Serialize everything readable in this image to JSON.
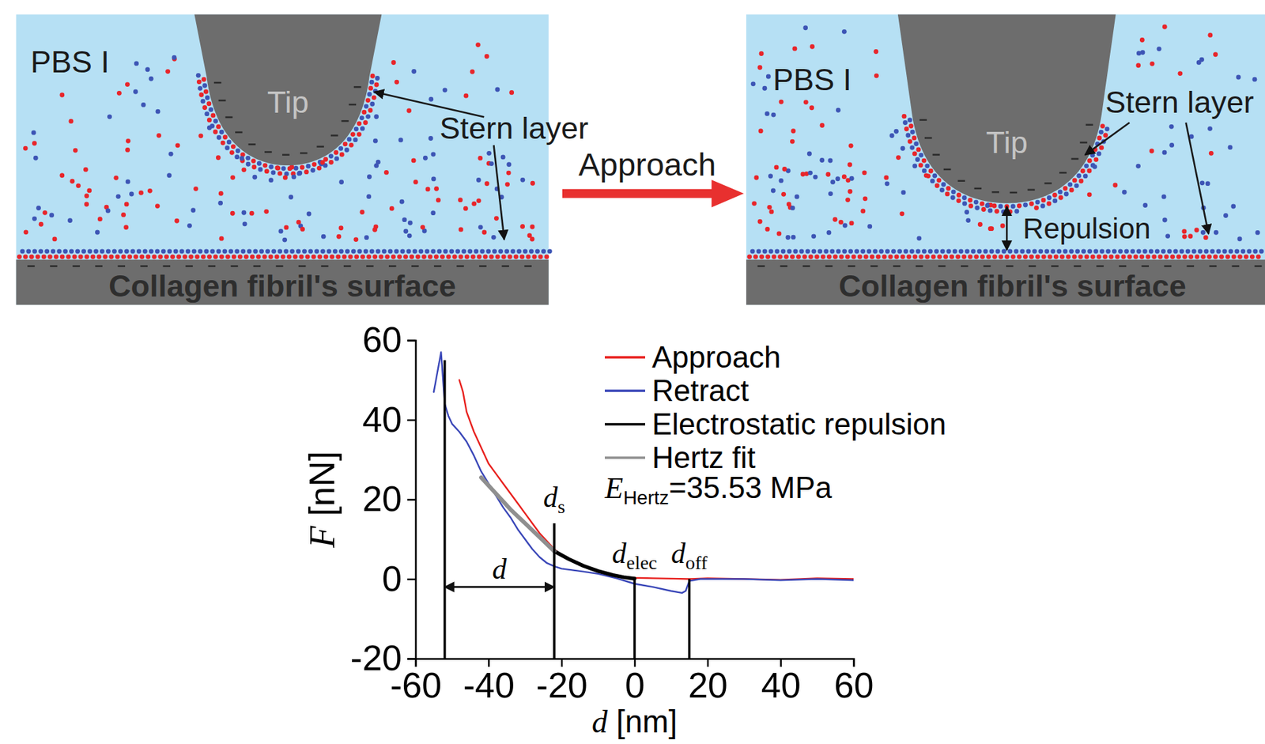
{
  "diagram": {
    "panels": [
      {
        "solution": "PBS I",
        "tip": "Tip",
        "stern_layer": "Stern layer",
        "surface": "Collagen fibril's surface"
      },
      {
        "solution": "PBS I",
        "tip": "Tip",
        "stern_layer": "Stern layer",
        "surface": "Collagen fibril's surface",
        "force": "Repulsion"
      }
    ],
    "transition": "Approach"
  },
  "chart_data": {
    "type": "line",
    "xlabel": "d [nm]",
    "ylabel": "F [nN]",
    "xlim": [
      -60,
      60
    ],
    "xticks": [
      -60,
      -40,
      -20,
      0,
      20,
      40,
      60
    ],
    "ylim": [
      -20,
      60
    ],
    "yticks": [
      -20,
      0,
      20,
      40,
      60
    ],
    "legend": "upper right",
    "series": [
      {
        "name": "Approach",
        "color": "#e8211e",
        "x": [
          -48,
          -47,
          -46,
          -44,
          -42,
          -40,
          -38,
          -36,
          -34,
          -32,
          -30,
          -28,
          -26,
          -24,
          -22,
          -20,
          -18,
          -15,
          -12,
          -9,
          -6,
          -3,
          0,
          5,
          10,
          15,
          20,
          30,
          40,
          50,
          60
        ],
        "values": [
          50,
          47,
          42,
          37,
          33,
          29,
          26.5,
          24,
          21.5,
          19,
          16.5,
          14,
          11.5,
          9.5,
          7.5,
          6,
          5,
          3.5,
          2.5,
          1.7,
          1,
          0.5,
          0.3,
          0.2,
          0.1,
          0,
          0.2,
          0,
          -0.2,
          0.2,
          0
        ]
      },
      {
        "name": "Retract",
        "color": "#3a47b8",
        "x": [
          -55,
          -54,
          -53,
          -52,
          -51,
          -50,
          -48,
          -46,
          -44,
          -42,
          -40,
          -38,
          -36,
          -34,
          -32,
          -30,
          -28,
          -26,
          -24,
          -22,
          -20,
          -15,
          -10,
          -5,
          0,
          5,
          10,
          13,
          14,
          15,
          18,
          30,
          40,
          50,
          60
        ],
        "values": [
          47,
          52,
          57,
          44,
          41,
          39,
          37,
          34.5,
          31,
          27,
          24,
          21,
          18,
          15.5,
          12.5,
          10,
          7.5,
          5.5,
          4,
          3.2,
          2.6,
          2,
          1.3,
          0.2,
          -1.2,
          -2,
          -3,
          -3.5,
          -3,
          -0.5,
          0,
          0,
          -0.3,
          0,
          -0.3
        ]
      },
      {
        "name": "Electrostatic repulsion",
        "color": "#000000",
        "x": [
          -22,
          -18,
          -14,
          -10,
          -6,
          -3,
          0
        ],
        "values": [
          7,
          5,
          3.3,
          2,
          1,
          0.45,
          0.1
        ]
      },
      {
        "name": "Hertz fit",
        "color": "#8f8f8f",
        "x": [
          -42,
          -38,
          -34,
          -30,
          -26,
          -22
        ],
        "values": [
          25.5,
          21.5,
          17.5,
          14,
          10.5,
          7
        ]
      }
    ],
    "markers": [
      {
        "x": -52,
        "y": 55
      },
      {
        "x": -22,
        "y": 14,
        "text": "d",
        "subscript": "s"
      },
      {
        "x": 0,
        "y": 0,
        "text": "d",
        "subscript": "elec"
      },
      {
        "x": 15,
        "y": 0,
        "text": "d",
        "subscript": "off"
      }
    ],
    "span": {
      "from": -52,
      "to": -22,
      "y": -2,
      "text": "d"
    },
    "modulus": {
      "text": "E",
      "subscript": "Hertz",
      "suffix": "=35.53 MPa"
    }
  }
}
